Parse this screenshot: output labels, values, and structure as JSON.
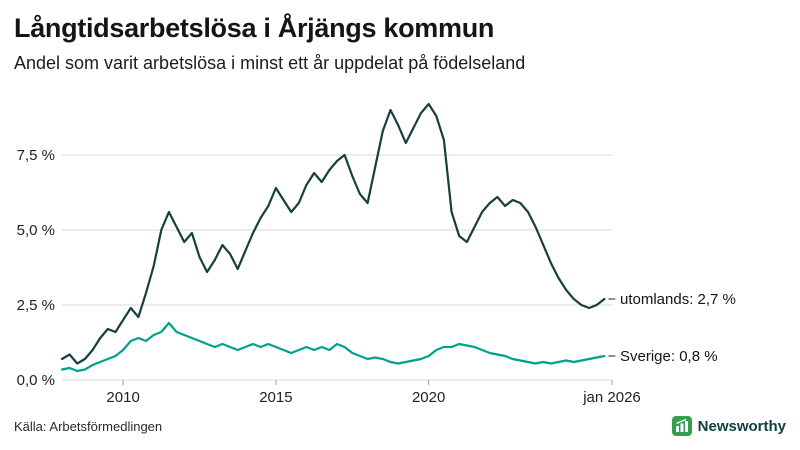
{
  "header": {
    "title": "Långtidsarbetslösa i Årjängs kommun",
    "subtitle": "Andel som varit arbetslösa i minst ett år uppdelat på födelseland"
  },
  "footer": {
    "source": "Källa: Arbetsförmedlingen",
    "brand": "Newsworthy"
  },
  "colors": {
    "utomlands_line": "#17403d",
    "sverige_line": "#00a18c",
    "gridline": "#d9d9d9",
    "tick_text": "#222222",
    "end_label_text": "#141414",
    "brand_green": "#34a04e"
  },
  "chart_data": {
    "type": "line",
    "title": "Långtidsarbetslösa i Årjängs kommun",
    "subtitle": "Andel som varit arbetslösa i minst ett år uppdelat på födelseland",
    "unit": "%",
    "grid": true,
    "x_range": [
      2008.0,
      2026.0
    ],
    "y_range": [
      0,
      9.6
    ],
    "y_ticks": [
      {
        "value": 0.0,
        "label": "0,0 %"
      },
      {
        "value": 2.5,
        "label": "2,5 %"
      },
      {
        "value": 5.0,
        "label": "5,0 %"
      },
      {
        "value": 7.5,
        "label": "7,5 %"
      }
    ],
    "x_ticks": [
      {
        "value": 2010,
        "label": "2010"
      },
      {
        "value": 2015,
        "label": "2015"
      },
      {
        "value": 2020,
        "label": "2020"
      },
      {
        "value": 2026,
        "label": "jan 2026"
      }
    ],
    "series": [
      {
        "name": "Sverige",
        "end_label": "Sverige: 0,8 %",
        "end_value": 0.8,
        "color_key": "sverige_line",
        "points": [
          [
            2008.0,
            0.35
          ],
          [
            2008.25,
            0.4
          ],
          [
            2008.5,
            0.3
          ],
          [
            2008.75,
            0.35
          ],
          [
            2009.0,
            0.5
          ],
          [
            2009.25,
            0.6
          ],
          [
            2009.5,
            0.7
          ],
          [
            2009.75,
            0.8
          ],
          [
            2010.0,
            1.0
          ],
          [
            2010.25,
            1.3
          ],
          [
            2010.5,
            1.4
          ],
          [
            2010.75,
            1.3
          ],
          [
            2011.0,
            1.5
          ],
          [
            2011.25,
            1.6
          ],
          [
            2011.5,
            1.9
          ],
          [
            2011.75,
            1.6
          ],
          [
            2012.0,
            1.5
          ],
          [
            2012.25,
            1.4
          ],
          [
            2012.5,
            1.3
          ],
          [
            2012.75,
            1.2
          ],
          [
            2013.0,
            1.1
          ],
          [
            2013.25,
            1.2
          ],
          [
            2013.5,
            1.1
          ],
          [
            2013.75,
            1.0
          ],
          [
            2014.0,
            1.1
          ],
          [
            2014.25,
            1.2
          ],
          [
            2014.5,
            1.1
          ],
          [
            2014.75,
            1.2
          ],
          [
            2015.0,
            1.1
          ],
          [
            2015.25,
            1.0
          ],
          [
            2015.5,
            0.9
          ],
          [
            2015.75,
            1.0
          ],
          [
            2016.0,
            1.1
          ],
          [
            2016.25,
            1.0
          ],
          [
            2016.5,
            1.1
          ],
          [
            2016.75,
            1.0
          ],
          [
            2017.0,
            1.2
          ],
          [
            2017.25,
            1.1
          ],
          [
            2017.5,
            0.9
          ],
          [
            2017.75,
            0.8
          ],
          [
            2018.0,
            0.7
          ],
          [
            2018.25,
            0.75
          ],
          [
            2018.5,
            0.7
          ],
          [
            2018.75,
            0.6
          ],
          [
            2019.0,
            0.55
          ],
          [
            2019.25,
            0.6
          ],
          [
            2019.5,
            0.65
          ],
          [
            2019.75,
            0.7
          ],
          [
            2020.0,
            0.8
          ],
          [
            2020.25,
            1.0
          ],
          [
            2020.5,
            1.1
          ],
          [
            2020.75,
            1.1
          ],
          [
            2021.0,
            1.2
          ],
          [
            2021.25,
            1.15
          ],
          [
            2021.5,
            1.1
          ],
          [
            2021.75,
            1.0
          ],
          [
            2022.0,
            0.9
          ],
          [
            2022.25,
            0.85
          ],
          [
            2022.5,
            0.8
          ],
          [
            2022.75,
            0.7
          ],
          [
            2023.0,
            0.65
          ],
          [
            2023.25,
            0.6
          ],
          [
            2023.5,
            0.55
          ],
          [
            2023.75,
            0.6
          ],
          [
            2024.0,
            0.55
          ],
          [
            2024.25,
            0.6
          ],
          [
            2024.5,
            0.65
          ],
          [
            2024.75,
            0.6
          ],
          [
            2025.0,
            0.65
          ],
          [
            2025.25,
            0.7
          ],
          [
            2025.5,
            0.75
          ],
          [
            2025.75,
            0.8
          ]
        ]
      },
      {
        "name": "utomlands",
        "end_label": "utomlands: 2,7 %",
        "end_value": 2.7,
        "color_key": "utomlands_line",
        "points": [
          [
            2008.0,
            0.7
          ],
          [
            2008.25,
            0.85
          ],
          [
            2008.5,
            0.55
          ],
          [
            2008.75,
            0.7
          ],
          [
            2009.0,
            1.0
          ],
          [
            2009.25,
            1.4
          ],
          [
            2009.5,
            1.7
          ],
          [
            2009.75,
            1.6
          ],
          [
            2010.0,
            2.0
          ],
          [
            2010.25,
            2.4
          ],
          [
            2010.5,
            2.1
          ],
          [
            2010.75,
            2.9
          ],
          [
            2011.0,
            3.8
          ],
          [
            2011.25,
            5.0
          ],
          [
            2011.5,
            5.6
          ],
          [
            2011.75,
            5.1
          ],
          [
            2012.0,
            4.6
          ],
          [
            2012.25,
            4.9
          ],
          [
            2012.5,
            4.1
          ],
          [
            2012.75,
            3.6
          ],
          [
            2013.0,
            4.0
          ],
          [
            2013.25,
            4.5
          ],
          [
            2013.5,
            4.2
          ],
          [
            2013.75,
            3.7
          ],
          [
            2014.0,
            4.3
          ],
          [
            2014.25,
            4.9
          ],
          [
            2014.5,
            5.4
          ],
          [
            2014.75,
            5.8
          ],
          [
            2015.0,
            6.4
          ],
          [
            2015.25,
            6.0
          ],
          [
            2015.5,
            5.6
          ],
          [
            2015.75,
            5.9
          ],
          [
            2016.0,
            6.5
          ],
          [
            2016.25,
            6.9
          ],
          [
            2016.5,
            6.6
          ],
          [
            2016.75,
            7.0
          ],
          [
            2017.0,
            7.3
          ],
          [
            2017.25,
            7.5
          ],
          [
            2017.5,
            6.8
          ],
          [
            2017.75,
            6.2
          ],
          [
            2018.0,
            5.9
          ],
          [
            2018.25,
            7.1
          ],
          [
            2018.5,
            8.3
          ],
          [
            2018.75,
            9.0
          ],
          [
            2019.0,
            8.5
          ],
          [
            2019.25,
            7.9
          ],
          [
            2019.5,
            8.4
          ],
          [
            2019.75,
            8.9
          ],
          [
            2020.0,
            9.2
          ],
          [
            2020.25,
            8.8
          ],
          [
            2020.5,
            8.0
          ],
          [
            2020.75,
            5.6
          ],
          [
            2021.0,
            4.8
          ],
          [
            2021.25,
            4.6
          ],
          [
            2021.5,
            5.1
          ],
          [
            2021.75,
            5.6
          ],
          [
            2022.0,
            5.9
          ],
          [
            2022.25,
            6.1
          ],
          [
            2022.5,
            5.8
          ],
          [
            2022.75,
            6.0
          ],
          [
            2023.0,
            5.9
          ],
          [
            2023.25,
            5.6
          ],
          [
            2023.5,
            5.1
          ],
          [
            2023.75,
            4.5
          ],
          [
            2024.0,
            3.9
          ],
          [
            2024.25,
            3.4
          ],
          [
            2024.5,
            3.0
          ],
          [
            2024.75,
            2.7
          ],
          [
            2025.0,
            2.5
          ],
          [
            2025.25,
            2.4
          ],
          [
            2025.5,
            2.5
          ],
          [
            2025.75,
            2.7
          ]
        ]
      }
    ]
  }
}
